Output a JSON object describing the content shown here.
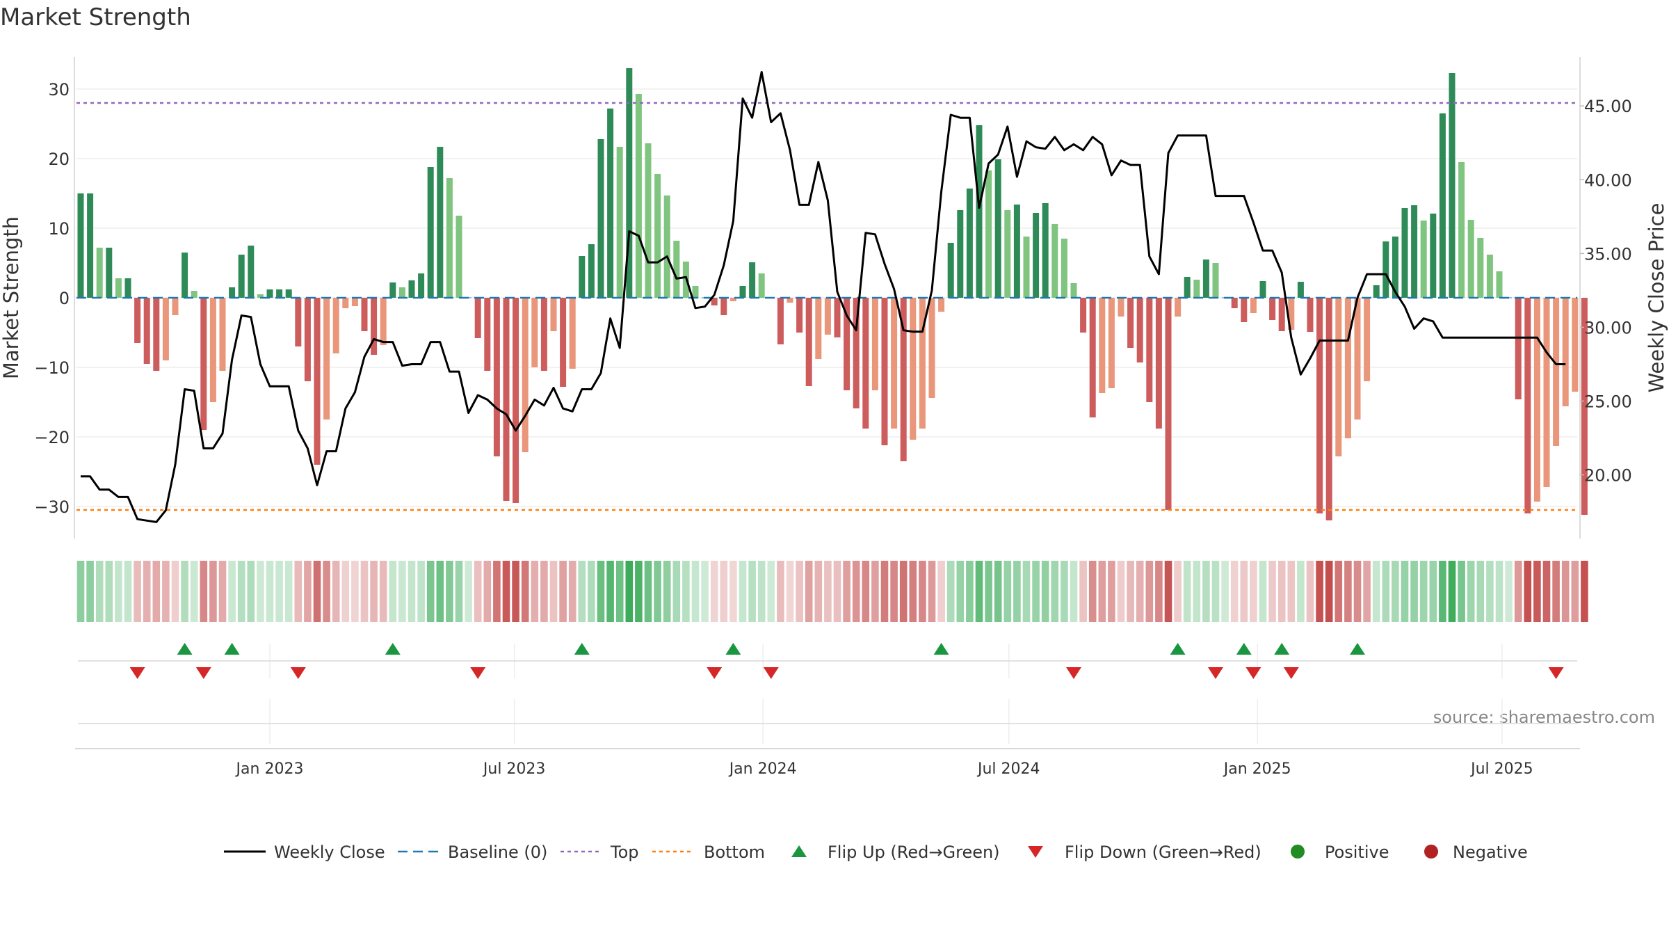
{
  "chart_data": {
    "type": "bar",
    "title": "Market Strength",
    "ylabel": "Market Strength",
    "y2label": "Weekly Close Price",
    "ylim": [
      -35,
      35
    ],
    "y2lim": [
      15.5,
      48.5
    ],
    "yticks": [
      30,
      20,
      10,
      0,
      -10,
      -20,
      -30
    ],
    "ytick_labels": [
      "30",
      "20",
      "10",
      "0",
      "−10",
      "−20",
      "−30"
    ],
    "y2ticks": [
      45,
      40,
      35,
      30,
      25,
      20
    ],
    "y2tick_labels": [
      "45.00",
      "40.00",
      "35.00",
      "30.00",
      "25.00",
      "20.00"
    ],
    "top_line": 28,
    "bottom_line": -30.5,
    "x_start": "2022-08-14",
    "x_end": "2025-09-22",
    "xticks": [
      "2023-01-01",
      "2023-07-01",
      "2024-01-01",
      "2024-07-01",
      "2025-01-01",
      "2025-07-01"
    ],
    "xtick_labels": [
      "Jan 2023",
      "Jul 2023",
      "Jan 2024",
      "Jul 2024",
      "Jan 2025",
      "Jul 2025"
    ],
    "source_text": "source: sharemaestro.com",
    "colors": {
      "pos_dark": "#2e8b57",
      "pos_light": "#7fc47f",
      "neg_dark": "#cd5c5c",
      "neg_light": "#e9967a",
      "line": "#000000",
      "baseline": "#1f77b4",
      "top": "#9467bd",
      "bottom": "#ff7f0e",
      "flip_up": "#1a9641",
      "flip_down": "#d62728",
      "positive": "#228b22",
      "negative": "#b22222"
    },
    "series": [
      {
        "name": "Market Strength",
        "values": [
          15,
          15,
          7.2,
          7.2,
          2.8,
          2.8,
          -6.5,
          -9.5,
          -10.5,
          -9,
          -2.5,
          6.5,
          1,
          -19,
          -15,
          -10.5,
          1.5,
          6.2,
          7.5,
          0.5,
          1.2,
          1.2,
          1.2,
          -7,
          -12,
          -24,
          -17.5,
          -8,
          -1.5,
          -1.2,
          -4.8,
          -8.2,
          -6.8,
          2.2,
          1.5,
          2.5,
          3.5,
          18.8,
          21.7,
          17.2,
          11.8,
          0,
          -5.8,
          -10.5,
          -22.8,
          -29.2,
          -29.5,
          -22.2,
          -10,
          -10.5,
          -4.8,
          -12.8,
          -10.2,
          6,
          7.7,
          22.8,
          27.2,
          21.7,
          33,
          29.3,
          22.2,
          17.8,
          14.7,
          8.2,
          5.2,
          1.7,
          0,
          -1.1,
          -2.5,
          -0.5,
          1.7,
          5.1,
          3.5,
          0,
          -6.7,
          -0.7,
          -5,
          -12.7,
          -8.8,
          -5.3,
          -5.7,
          -13.3,
          -15.9,
          -18.8,
          -13.3,
          -21.2,
          -18.8,
          -23.5,
          -20.4,
          -18.8,
          -14.4,
          -2,
          7.9,
          12.6,
          15.7,
          24.8,
          18.3,
          19.9,
          12.6,
          13.4,
          8.8,
          12.2,
          13.6,
          10.6,
          8.5,
          2.1,
          -5,
          -17.2,
          -13.7,
          -13,
          -2.7,
          -7.2,
          -9.3,
          -15,
          -18.8,
          -30.5,
          -2.7,
          3,
          2.6,
          5.5,
          5,
          0,
          -1.5,
          -3.5,
          -2.2,
          2.4,
          -3.2,
          -4.8,
          -4.6,
          2.3,
          -4.9,
          -31,
          -32,
          -22.8,
          -20.2,
          -17.5,
          -12,
          1.8,
          8.1,
          8.8,
          12.9,
          13.3,
          11.1,
          12.1,
          26.5,
          32.3,
          19.5,
          11.2,
          8.6,
          6.2,
          3.8,
          0,
          -14.6,
          -31,
          -29.3,
          -27.2,
          -21.3,
          -15.6,
          -13.5,
          -31.2
        ]
      },
      {
        "name": "Weekly Close",
        "values": [
          19.9,
          19.9,
          19,
          19,
          18.5,
          18.5,
          17,
          16.9,
          16.8,
          17.6,
          20.7,
          25.8,
          25.7,
          21.8,
          21.8,
          22.8,
          27.8,
          30.8,
          30.7,
          27.5,
          26,
          26,
          26,
          23,
          21.8,
          19.3,
          21.6,
          21.6,
          24.5,
          25.6,
          28,
          29.2,
          29,
          29,
          27.4,
          27.5,
          27.5,
          29,
          29,
          27,
          27,
          24.2,
          25.4,
          25.1,
          24.5,
          24.1,
          23,
          24,
          25.1,
          24.7,
          25.9,
          24.5,
          24.3,
          25.8,
          25.8,
          26.9,
          30.6,
          28.6,
          36.5,
          36.2,
          34.4,
          34.4,
          34.8,
          33.3,
          33.4,
          31.3,
          31.4,
          32.2,
          34.2,
          37.2,
          45.5,
          44.2,
          47.3,
          43.9,
          44.5,
          42,
          38.3,
          38.3,
          41.2,
          38.6,
          32.4,
          30.8,
          29.8,
          36.4,
          36.3,
          34.3,
          32.6,
          29.8,
          29.7,
          29.7,
          32.5,
          39.2,
          44.4,
          44.2,
          44.2,
          38.1,
          41.1,
          41.7,
          43.6,
          40.2,
          42.6,
          42.2,
          42.1,
          42.9,
          42,
          42.4,
          42,
          42.9,
          42.4,
          40.3,
          41.3,
          41,
          41,
          34.8,
          33.6,
          41.8,
          43,
          43,
          43,
          43,
          38.9,
          38.9,
          38.9,
          38.9,
          37.1,
          35.2,
          35.2,
          33.7,
          29.3,
          26.8,
          27.9,
          29.1,
          29.1,
          29.1,
          29.1,
          32,
          33.6,
          33.6,
          33.6,
          32.4,
          31.4,
          29.9,
          30.6,
          30.4,
          29.3,
          29.3,
          29.3,
          29.3,
          29.3,
          29.3,
          29.3,
          29.3,
          29.3,
          29.3,
          29.3,
          28.3,
          27.5,
          27.5
        ]
      }
    ],
    "flip_up_weeks": [
      11,
      16,
      33,
      53,
      69,
      91,
      116,
      123,
      127,
      135
    ],
    "flip_down_weeks": [
      6,
      13,
      23,
      42,
      67,
      73,
      105,
      120,
      124,
      128,
      156
    ],
    "legend": {
      "items": [
        {
          "key": "line",
          "label": "Weekly Close"
        },
        {
          "key": "baseline",
          "label": "Baseline (0)"
        },
        {
          "key": "top",
          "label": "Top"
        },
        {
          "key": "bottom",
          "label": "Bottom"
        },
        {
          "key": "flipup",
          "label": "Flip Up (Red→Green)"
        },
        {
          "key": "flipdown",
          "label": "Flip Down (Green→Red)"
        },
        {
          "key": "positive",
          "label": "Positive"
        },
        {
          "key": "negative",
          "label": "Negative"
        }
      ]
    }
  }
}
